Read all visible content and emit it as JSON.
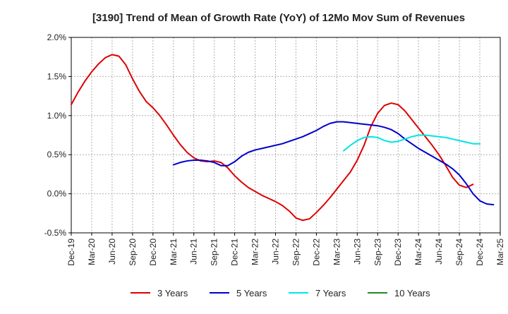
{
  "chart_data": {
    "type": "line",
    "title": "[3190]  Trend of Mean of Growth Rate (YoY) of 12Mo Mov Sum of Revenues",
    "xlabel": "",
    "ylabel": "",
    "ylim": [
      -0.5,
      2.0
    ],
    "y_ticks": [
      -0.5,
      0.0,
      0.5,
      1.0,
      1.5,
      2.0
    ],
    "y_tick_labels": [
      "-0.5%",
      "0.0%",
      "0.5%",
      "1.0%",
      "1.5%",
      "2.0%"
    ],
    "x_tick_labels": [
      "Dec-19",
      "Mar-20",
      "Jun-20",
      "Sep-20",
      "Dec-20",
      "Mar-21",
      "Jun-21",
      "Sep-21",
      "Dec-21",
      "Mar-22",
      "Jun-22",
      "Sep-22",
      "Dec-22",
      "Mar-23",
      "Jun-23",
      "Sep-23",
      "Dec-23",
      "Mar-24",
      "Jun-24",
      "Sep-24",
      "Dec-24",
      "Mar-25"
    ],
    "x_range_months": [
      0,
      63
    ],
    "grid": true,
    "legend_position": "bottom",
    "series": [
      {
        "name": "3 Years",
        "color": "#dd0000",
        "start_month": 0,
        "values": [
          1.14,
          1.3,
          1.44,
          1.56,
          1.66,
          1.74,
          1.78,
          1.76,
          1.65,
          1.47,
          1.31,
          1.18,
          1.1,
          1.0,
          0.88,
          0.75,
          0.63,
          0.53,
          0.46,
          0.42,
          0.41,
          0.42,
          0.4,
          0.33,
          0.23,
          0.15,
          0.08,
          0.03,
          -0.02,
          -0.06,
          -0.1,
          -0.15,
          -0.22,
          -0.31,
          -0.34,
          -0.32,
          -0.24,
          -0.15,
          -0.05,
          0.06,
          0.17,
          0.28,
          0.43,
          0.62,
          0.86,
          1.03,
          1.13,
          1.16,
          1.14,
          1.06,
          0.95,
          0.84,
          0.73,
          0.62,
          0.5,
          0.36,
          0.21,
          0.11,
          0.08,
          0.12
        ]
      },
      {
        "name": "5 Years",
        "color": "#0000cc",
        "start_month": 15,
        "values": [
          0.37,
          0.4,
          0.42,
          0.43,
          0.43,
          0.42,
          0.4,
          0.36,
          0.36,
          0.41,
          0.48,
          0.53,
          0.56,
          0.58,
          0.6,
          0.62,
          0.64,
          0.67,
          0.7,
          0.73,
          0.77,
          0.81,
          0.86,
          0.9,
          0.92,
          0.92,
          0.91,
          0.9,
          0.89,
          0.88,
          0.87,
          0.85,
          0.82,
          0.77,
          0.7,
          0.64,
          0.58,
          0.53,
          0.48,
          0.43,
          0.38,
          0.32,
          0.24,
          0.13,
          0.0,
          -0.09,
          -0.13,
          -0.14
        ]
      },
      {
        "name": "7 Years",
        "color": "#00e5e5",
        "start_month": 40,
        "values": [
          0.55,
          0.62,
          0.68,
          0.72,
          0.73,
          0.72,
          0.68,
          0.66,
          0.67,
          0.7,
          0.73,
          0.75,
          0.75,
          0.74,
          0.73,
          0.72,
          0.7,
          0.68,
          0.66,
          0.64,
          0.64
        ]
      },
      {
        "name": "10 Years",
        "color": "#228b22",
        "start_month": 0,
        "values": []
      }
    ]
  }
}
